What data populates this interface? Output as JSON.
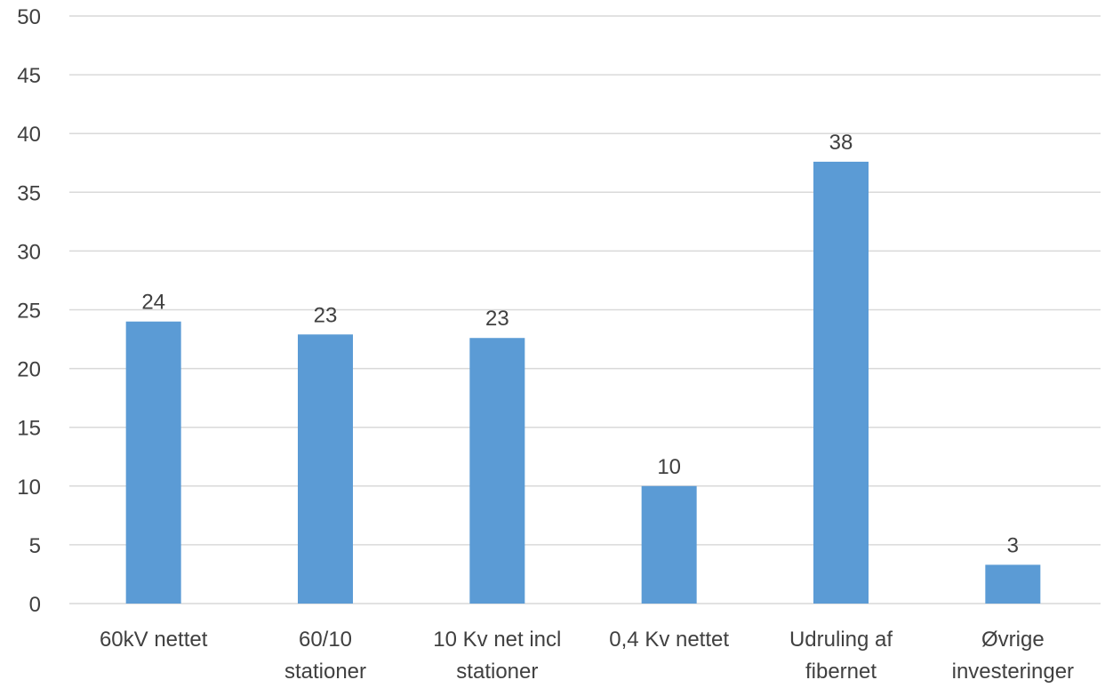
{
  "chart_data": {
    "type": "bar",
    "categories": [
      [
        "60kV nettet"
      ],
      [
        "60/10",
        "stationer"
      ],
      [
        "10 Kv net incl",
        "stationer"
      ],
      [
        "0,4 Kv nettet"
      ],
      [
        "Udruling af",
        "fibernet"
      ],
      [
        "Øvrige",
        "investeringer"
      ]
    ],
    "values": [
      24,
      22.9,
      22.6,
      10,
      37.6,
      3.3
    ],
    "data_labels": [
      "24",
      "23",
      "23",
      "10",
      "38",
      "3"
    ],
    "y_ticks": [
      "0",
      "5",
      "10",
      "15",
      "20",
      "25",
      "30",
      "35",
      "40",
      "45",
      "50"
    ],
    "ylim": [
      0,
      50
    ],
    "grid": true,
    "legend": "none",
    "bar_color": "#5B9BD5",
    "grid_color": "#D9D9D9",
    "text_color": "#404040"
  }
}
